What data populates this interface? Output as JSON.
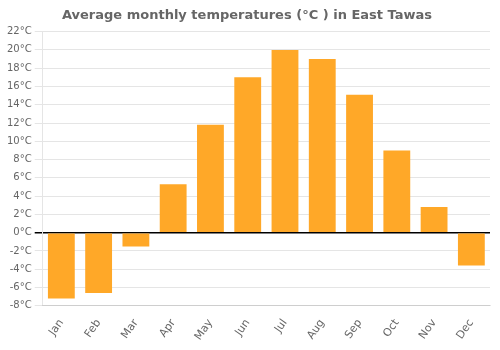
{
  "chart_data": {
    "type": "bar",
    "title": "Average monthly temperatures (°C ) in East Tawas",
    "categories": [
      "Jan",
      "Feb",
      "Mar",
      "Apr",
      "May",
      "Jun",
      "Jul",
      "Aug",
      "Sep",
      "Oct",
      "Nov",
      "Dec"
    ],
    "values": [
      -7.2,
      -6.6,
      -1.5,
      5.3,
      11.8,
      17,
      20,
      19,
      15.1,
      9,
      2.8,
      -3.6
    ],
    "color": "#FFA828",
    "ylim": [
      -8,
      22
    ],
    "yticks": [
      {
        "value": -8,
        "label": "-8°C"
      },
      {
        "value": -6,
        "label": "-6°C"
      },
      {
        "value": -4,
        "label": "-4°C"
      },
      {
        "value": -2,
        "label": "-2°C"
      },
      {
        "value": 0,
        "label": "0°C"
      },
      {
        "value": 2,
        "label": "2°C"
      },
      {
        "value": 4,
        "label": "4°C"
      },
      {
        "value": 6,
        "label": "6°C"
      },
      {
        "value": 8,
        "label": "8°C"
      },
      {
        "value": 10,
        "label": "10°C"
      },
      {
        "value": 12,
        "label": "12°C"
      },
      {
        "value": 14,
        "label": "14°C"
      },
      {
        "value": 16,
        "label": "16°C"
      },
      {
        "value": 18,
        "label": "18°C"
      },
      {
        "value": 20,
        "label": "20°C"
      },
      {
        "value": 22,
        "label": "22°C"
      }
    ],
    "grid": true
  }
}
